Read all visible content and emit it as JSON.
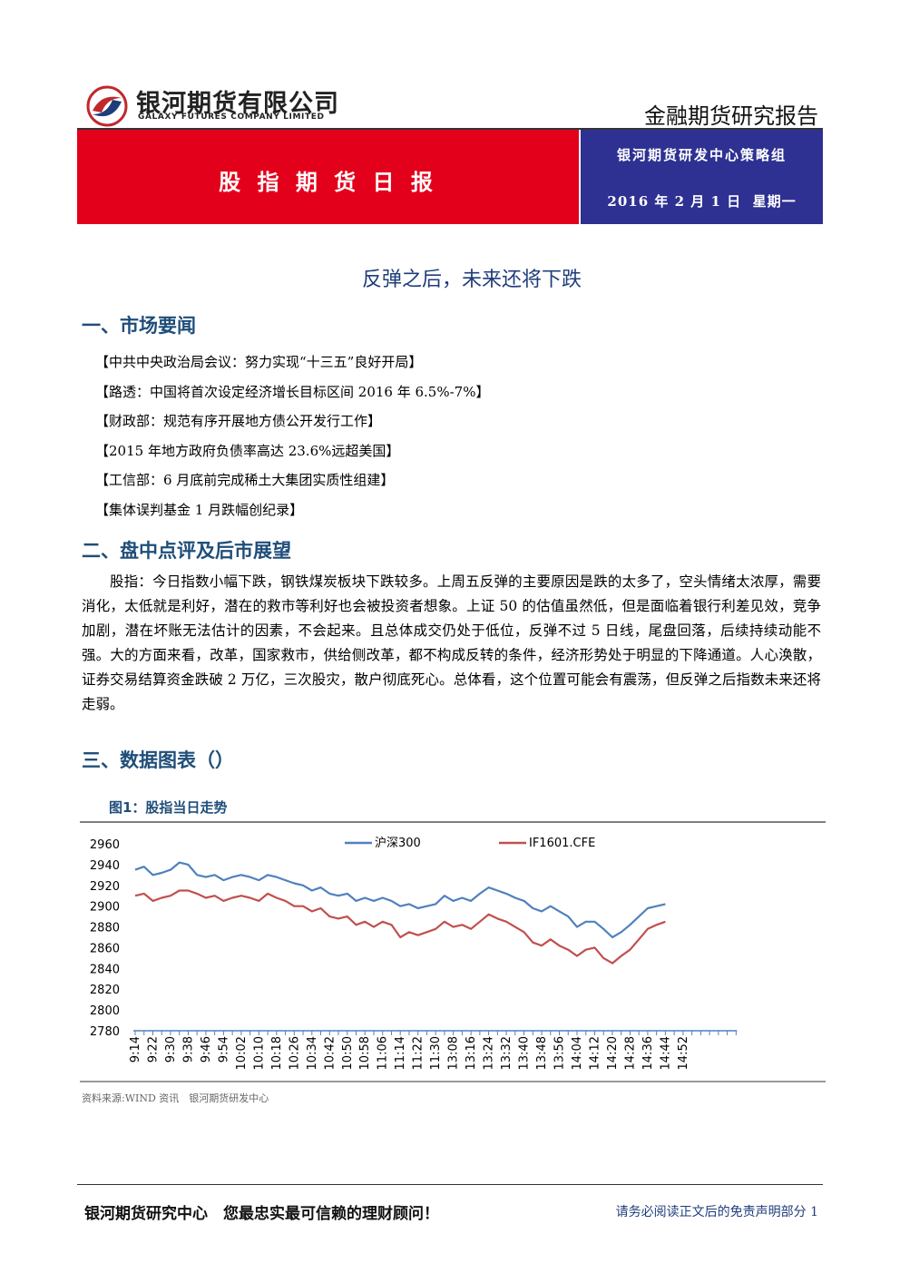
{
  "header": {
    "company_cn": "银河期货有限公司",
    "company_en": "GALAXY FUTURES COMPANY LIMITED",
    "report_type": "金融期货研究报告"
  },
  "banner": {
    "title": "股 指 期 货 日 报",
    "team": "银河期货研发中心策略组",
    "date": "2016 年 2 月 1 日  星期一"
  },
  "title": "反弹之后，未来还将下跌",
  "sections": [
    {
      "heading": "一、市场要闻",
      "items": [
        "【中共中央政治局会议：努力实现“十三五”良好开局】",
        "【路透：中国将首次设定经济增长目标区间 2016 年 6.5%-7%】",
        "【财政部：规范有序开展地方债公开发行工作】",
        "【2015 年地方政府负债率高达 23.6%远超美国】",
        "【工信部：6 月底前完成稀土大集团实质性组建】",
        "【集体误判基金 1 月跌幅创纪录】"
      ]
    },
    {
      "heading": "二、盘中点评及后市展望",
      "paragraph": "股指：今日指数小幅下跌，钢铁煤炭板块下跌较多。上周五反弹的主要原因是跌的太多了，空头情绪太浓厚，需要消化，太低就是利好，潜在的救市等利好也会被投资者想象。上证 50 的估值虽然低，但是面临着银行利差见效，竞争加剧，潜在坏账无法估计的因素，不会起来。且总体成交仍处于低位，反弹不过 5 日线，尾盘回落，后续持续动能不强。大的方面来看，改革，国家救市，供给侧改革，都不构成反转的条件，经济形势处于明显的下降通道。人心涣散，证券交易结算资金跌破 2 万亿，三次股灾，散户彻底死心。总体看，这个位置可能会有震荡，但反弹之后指数未来还将走弱。"
    },
    {
      "heading": "三、数据图表（）"
    }
  ],
  "figure": {
    "caption": "图1：股指当日走势",
    "source": "资料来源:WIND 资讯　银河期货研发中心"
  },
  "chart_data": {
    "type": "line",
    "x": [
      "9:14",
      null,
      "9:22",
      null,
      "9:30",
      null,
      "9:38",
      null,
      "9:46",
      null,
      "9:54",
      null,
      "10:02",
      null,
      "10:10",
      null,
      "10:18",
      null,
      "10:26",
      null,
      "10:34",
      null,
      "10:42",
      null,
      "10:50",
      null,
      "10:58",
      null,
      "11:06",
      null,
      "11:14",
      null,
      "11:22",
      null,
      "11:30",
      null,
      "13:08",
      null,
      "13:16",
      null,
      "13:24",
      null,
      "13:32",
      null,
      "13:40",
      null,
      "13:48",
      null,
      "13:56",
      null,
      "14:04",
      null,
      "14:12",
      null,
      "14:20",
      null,
      "14:28",
      null,
      "14:36",
      null,
      "14:44",
      null,
      "14:52",
      null,
      null,
      null,
      null,
      null,
      null
    ],
    "series": [
      {
        "name": "沪深300",
        "color": "#4f81bd",
        "values": [
          2935,
          2938,
          2930,
          2932,
          2935,
          2942,
          2940,
          2930,
          2928,
          2930,
          2925,
          2928,
          2930,
          2928,
          2925,
          2930,
          2928,
          2925,
          2922,
          2920,
          2915,
          2918,
          2912,
          2910,
          2912,
          2905,
          2908,
          2905,
          2908,
          2905,
          2900,
          2902,
          2898,
          2900,
          2902,
          2910,
          2905,
          2908,
          2905,
          2912,
          2918,
          2915,
          2912,
          2908,
          2905,
          2898,
          2895,
          2900,
          2895,
          2890,
          2880,
          2885,
          2885,
          2878,
          2870,
          2875,
          2882,
          2890,
          2898,
          2900,
          2902,
          null,
          null,
          null,
          null,
          null,
          null,
          null,
          null
        ]
      },
      {
        "name": "IF1601.CFE",
        "color": "#c0504d",
        "values": [
          2910,
          2912,
          2905,
          2908,
          2910,
          2915,
          2915,
          2912,
          2908,
          2910,
          2905,
          2908,
          2910,
          2908,
          2905,
          2912,
          2908,
          2905,
          2900,
          2900,
          2895,
          2898,
          2890,
          2888,
          2890,
          2882,
          2885,
          2880,
          2885,
          2882,
          2870,
          2875,
          2872,
          2875,
          2878,
          2885,
          2880,
          2882,
          2878,
          2885,
          2892,
          2888,
          2885,
          2880,
          2875,
          2865,
          2862,
          2868,
          2862,
          2858,
          2852,
          2858,
          2860,
          2850,
          2845,
          2852,
          2858,
          2868,
          2878,
          2882,
          2885,
          null,
          null,
          null,
          null,
          null,
          null,
          null,
          null
        ]
      }
    ],
    "ylim": [
      2780,
      2960
    ],
    "yticks": [
      2780,
      2800,
      2820,
      2840,
      2860,
      2880,
      2900,
      2920,
      2940,
      2960
    ],
    "grid": false,
    "legend": "top"
  },
  "footer": {
    "slogan": "银河期货研究中心　您最忠实最可信赖的理财顾问！",
    "disclaimer": "请务必阅读正文后的免责声明部分",
    "page": "1"
  }
}
